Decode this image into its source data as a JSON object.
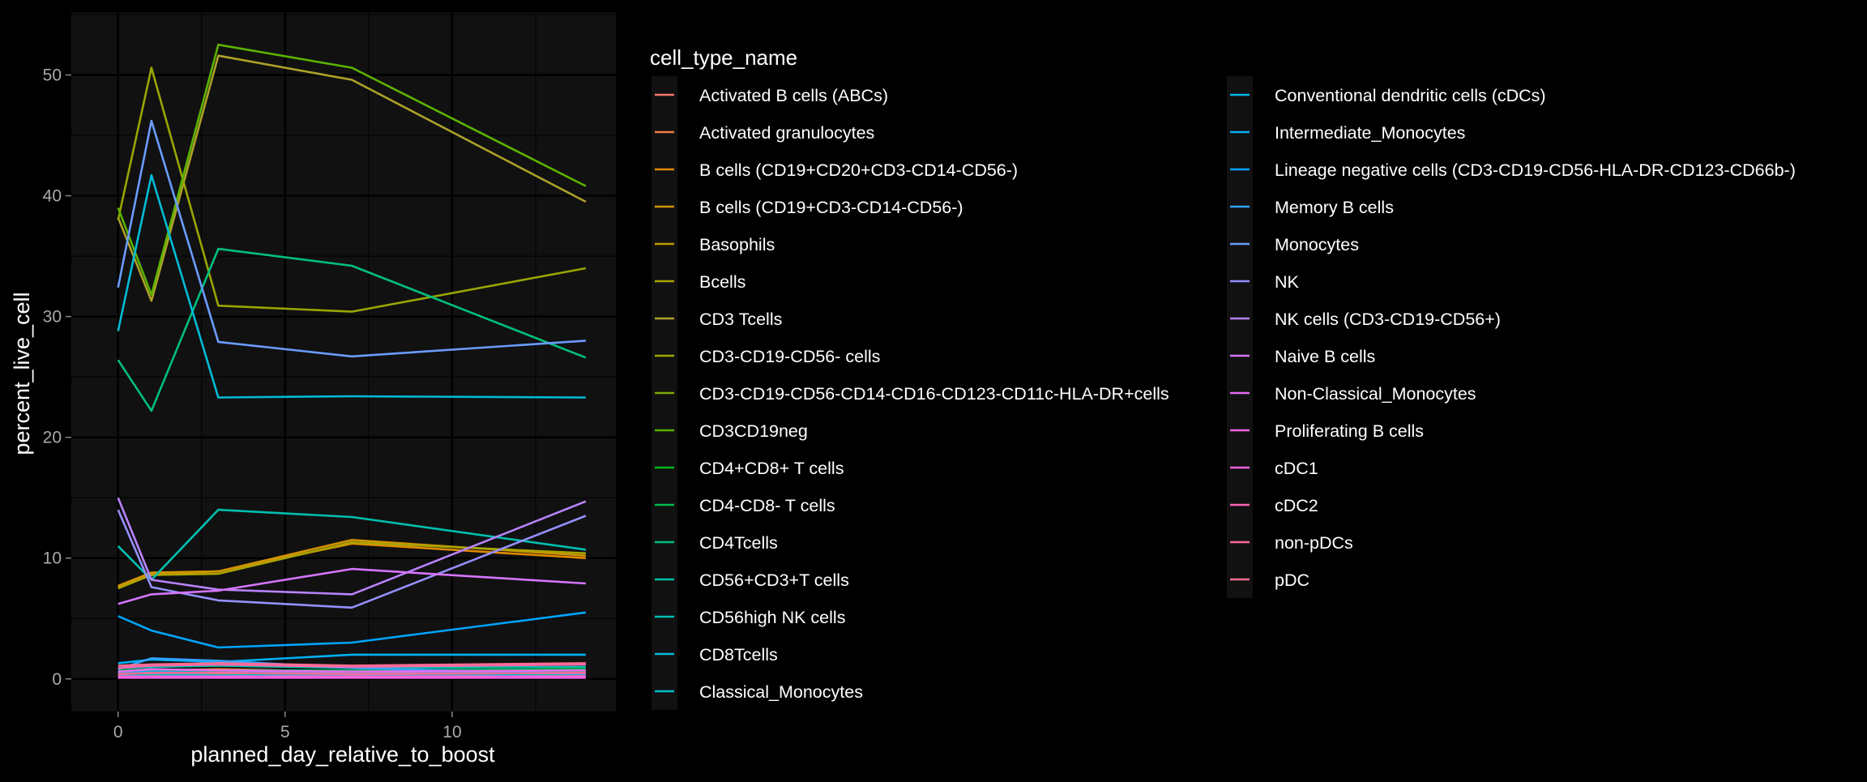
{
  "chart_data": {
    "type": "line",
    "xlabel": "planned_day_relative_to_boost",
    "ylabel": "percent_live_cell",
    "xlim": [
      -1.4,
      14.9
    ],
    "ylim": [
      -2.7,
      55.2
    ],
    "x_ticks": [
      0,
      5,
      10
    ],
    "y_ticks": [
      0,
      10,
      20,
      30,
      40,
      50
    ],
    "grid": true,
    "legend_position": "right",
    "legend_title": "cell_type_name",
    "background": "#111111",
    "x": [
      0,
      1,
      3,
      7,
      14
    ],
    "series": [
      {
        "name": "Activated B cells (ABCs)",
        "color": "#F8766D",
        "values": [
          0.4,
          0.6,
          0.7,
          0.5,
          0.5
        ]
      },
      {
        "name": "Activated granulocytes",
        "color": "#EE8042",
        "values": [
          0.6,
          0.7,
          0.8,
          0.6,
          0.7
        ]
      },
      {
        "name": "B cells (CD19+CD20+CD3-CD14-CD56-)",
        "color": "#E18A00",
        "values": [
          7.6,
          8.7,
          8.9,
          11.2,
          10.0
        ]
      },
      {
        "name": "B cells (CD19+CD3-CD14-CD56-)",
        "color": "#D19300",
        "values": [
          7.7,
          8.8,
          8.9,
          11.5,
          10.2
        ]
      },
      {
        "name": "Basophils",
        "color": "#BE9C00",
        "values": [
          0.3,
          0.3,
          0.4,
          0.4,
          0.3
        ]
      },
      {
        "name": "Bcells",
        "color": "#A9A400",
        "values": [
          7.5,
          8.6,
          8.7,
          11.3,
          10.4
        ]
      },
      {
        "name": "CD3 Tcells",
        "color": "#ADA228",
        "values": [
          38.2,
          31.3,
          51.6,
          49.6,
          39.5
        ]
      },
      {
        "name": "CD3-CD19-CD56- cells",
        "color": "#98A600",
        "values": [
          38.0,
          50.6,
          30.9,
          30.4,
          34.0
        ]
      },
      {
        "name": "CD3-CD19-CD56-CD14-CD16-CD123-CD11c-HLA-DR+cells",
        "color": "#7CAE00",
        "values": [
          0.2,
          0.3,
          0.3,
          0.2,
          0.2
        ]
      },
      {
        "name": "CD3CD19neg",
        "color": "#5BB300",
        "values": [
          39.0,
          31.8,
          52.5,
          50.6,
          40.8
        ]
      },
      {
        "name": "CD4+CD8+ T cells",
        "color": "#00B81F",
        "values": [
          0.5,
          0.6,
          0.6,
          0.5,
          0.6
        ]
      },
      {
        "name": "CD4-CD8- T cells",
        "color": "#00BB4E",
        "values": [
          0.7,
          0.8,
          0.7,
          0.7,
          0.8
        ]
      },
      {
        "name": "CD4Tcells",
        "color": "#00BF7D",
        "values": [
          26.4,
          22.2,
          35.6,
          34.2,
          26.6
        ]
      },
      {
        "name": "CD56+CD3+T cells",
        "color": "#00C1A3",
        "values": [
          0.9,
          1.0,
          1.1,
          0.9,
          1.0
        ]
      },
      {
        "name": "CD56high NK cells",
        "color": "#00BFB0",
        "values": [
          11.0,
          8.2,
          14.0,
          13.4,
          10.7
        ]
      },
      {
        "name": "CD8Tcells",
        "color": "#00BBD6",
        "values": [
          28.8,
          41.7,
          23.3,
          23.4,
          23.3
        ]
      },
      {
        "name": "Classical_Monocytes",
        "color": "#00BCC9",
        "values": [
          0.3,
          0.4,
          0.3,
          0.3,
          0.4
        ]
      },
      {
        "name": "Conventional dendritic cells (cDCs)",
        "color": "#00B7E5",
        "values": [
          0.5,
          0.6,
          0.5,
          0.5,
          0.5
        ]
      },
      {
        "name": "Intermediate_Monocytes",
        "color": "#00B0F6",
        "values": [
          1.3,
          1.6,
          1.4,
          2.0,
          2.0
        ]
      },
      {
        "name": "Lineage negative cells (CD3-CD19-CD56-HLA-DR-CD123-CD66b-)",
        "color": "#00A5FF",
        "values": [
          5.2,
          4.0,
          2.6,
          3.0,
          5.5
        ]
      },
      {
        "name": "Memory B cells",
        "color": "#35A2FF",
        "values": [
          0.8,
          1.7,
          1.5,
          0.9,
          0.4
        ]
      },
      {
        "name": "Monocytes",
        "color": "#6A9CFF",
        "values": [
          32.4,
          46.2,
          27.9,
          26.7,
          28.0
        ]
      },
      {
        "name": "NK",
        "color": "#9590FF",
        "values": [
          14.0,
          7.6,
          6.5,
          5.9,
          13.5
        ]
      },
      {
        "name": "NK cells (CD3-CD19-CD56+)",
        "color": "#B983FF",
        "values": [
          15.0,
          8.2,
          7.4,
          7.0,
          14.7
        ]
      },
      {
        "name": "Naive B cells",
        "color": "#D675FF",
        "values": [
          6.2,
          7.0,
          7.3,
          9.1,
          7.9
        ]
      },
      {
        "name": "Non-Classical_Monocytes",
        "color": "#E76BF3",
        "values": [
          0.6,
          0.8,
          0.7,
          0.6,
          0.7
        ]
      },
      {
        "name": "Proliferating B cells",
        "color": "#F365E6",
        "values": [
          0.1,
          0.1,
          0.1,
          0.1,
          0.1
        ]
      },
      {
        "name": "cDC1",
        "color": "#FA62DB",
        "values": [
          0.2,
          0.2,
          0.2,
          0.2,
          0.2
        ]
      },
      {
        "name": "cDC2",
        "color": "#FF63B6",
        "values": [
          0.9,
          1.1,
          1.2,
          1.0,
          1.2
        ]
      },
      {
        "name": "non-pDCs",
        "color": "#FF6A98",
        "values": [
          0.4,
          0.5,
          0.5,
          0.4,
          0.5
        ]
      },
      {
        "name": "pDC",
        "color": "#FF6C91",
        "values": [
          1.1,
          1.2,
          1.3,
          1.1,
          1.3
        ]
      }
    ]
  }
}
